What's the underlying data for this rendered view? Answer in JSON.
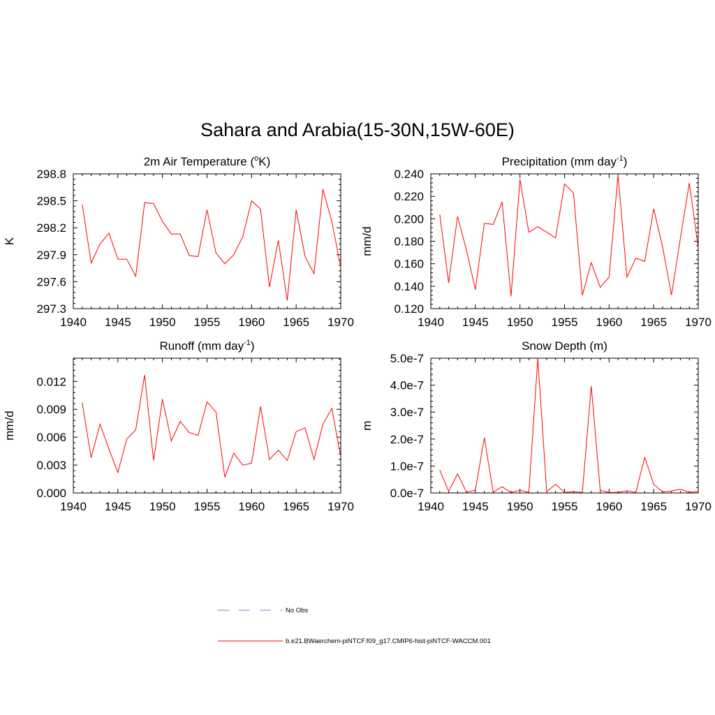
{
  "title": "Sahara and Arabia(15-30N,15W-60E)",
  "colors": {
    "series": "#ff0000",
    "no_obs": "#9999dd",
    "axis": "#000000"
  },
  "legend": {
    "items": [
      {
        "label": "No Obs",
        "style": "dashed"
      },
      {
        "label": "b.e21.BWaerchem-piNTCF.f09_g17.CMIP6-hist-piNTCF-WACCM.001",
        "style": "solid"
      }
    ]
  },
  "chart_data": [
    {
      "type": "line",
      "title_parts": [
        "2m Air Temperature (",
        "o",
        "K)"
      ],
      "title_style": "sup-mid",
      "ylabel": "K",
      "xlim": [
        1940,
        1970
      ],
      "ylim": [
        297.3,
        298.8
      ],
      "xticks": [
        1940,
        1945,
        1950,
        1955,
        1960,
        1965,
        1970
      ],
      "yticks": [
        297.3,
        297.6,
        297.9,
        298.2,
        298.5,
        298.8
      ],
      "ytick_labels": [
        "297.3",
        "297.6",
        "297.9",
        "298.2",
        "298.5",
        "298.8"
      ],
      "x": [
        1941,
        1942,
        1943,
        1944,
        1945,
        1946,
        1947,
        1948,
        1949,
        1950,
        1951,
        1952,
        1953,
        1954,
        1955,
        1956,
        1957,
        1958,
        1959,
        1960,
        1961,
        1962,
        1963,
        1964,
        1965,
        1966,
        1967,
        1968,
        1969,
        1970
      ],
      "series": [
        {
          "values": [
            298.46,
            297.81,
            298.02,
            298.14,
            297.85,
            297.85,
            297.66,
            298.48,
            298.47,
            298.27,
            298.13,
            298.13,
            297.89,
            297.88,
            298.4,
            297.92,
            297.8,
            297.9,
            298.1,
            298.5,
            298.41,
            297.54,
            298.06,
            297.39,
            298.4,
            297.88,
            297.69,
            298.63,
            298.27,
            297.76
          ]
        }
      ]
    },
    {
      "type": "line",
      "title_parts": [
        "Precipitation (mm day",
        "-1",
        ")"
      ],
      "title_style": "sup",
      "ylabel": "mm/d",
      "xlim": [
        1940,
        1970
      ],
      "ylim": [
        0.12,
        0.24
      ],
      "xticks": [
        1940,
        1945,
        1950,
        1955,
        1960,
        1965,
        1970
      ],
      "yticks": [
        0.12,
        0.14,
        0.16,
        0.18,
        0.2,
        0.22,
        0.24
      ],
      "ytick_labels": [
        "0.120",
        "0.140",
        "0.160",
        "0.180",
        "0.200",
        "0.220",
        "0.240"
      ],
      "x": [
        1941,
        1942,
        1943,
        1944,
        1945,
        1946,
        1947,
        1948,
        1949,
        1950,
        1951,
        1952,
        1953,
        1954,
        1955,
        1956,
        1957,
        1958,
        1959,
        1960,
        1961,
        1962,
        1963,
        1964,
        1965,
        1966,
        1967,
        1968,
        1969,
        1970
      ],
      "series": [
        {
          "values": [
            0.204,
            0.143,
            0.202,
            0.172,
            0.137,
            0.196,
            0.195,
            0.215,
            0.131,
            0.235,
            0.188,
            0.193,
            0.188,
            0.183,
            0.231,
            0.223,
            0.132,
            0.161,
            0.139,
            0.148,
            0.239,
            0.148,
            0.165,
            0.162,
            0.209,
            0.175,
            0.132,
            0.183,
            0.232,
            0.174
          ]
        }
      ]
    },
    {
      "type": "line",
      "title_parts": [
        "Runoff (mm day",
        "-1",
        ")"
      ],
      "title_style": "sup",
      "ylabel": "mm/d",
      "xlim": [
        1940,
        1970
      ],
      "ylim": [
        0,
        0.0145
      ],
      "xticks": [
        1940,
        1945,
        1950,
        1955,
        1960,
        1965,
        1970
      ],
      "yticks": [
        0,
        0.003,
        0.006,
        0.009,
        0.012
      ],
      "ytick_labels": [
        "0.000",
        "0.003",
        "0.006",
        "0.009",
        "0.012"
      ],
      "x": [
        1941,
        1942,
        1943,
        1944,
        1945,
        1946,
        1947,
        1948,
        1949,
        1950,
        1951,
        1952,
        1953,
        1954,
        1955,
        1956,
        1957,
        1958,
        1959,
        1960,
        1961,
        1962,
        1963,
        1964,
        1965,
        1966,
        1967,
        1968,
        1969,
        1970
      ],
      "series": [
        {
          "values": [
            0.0097,
            0.0038,
            0.0074,
            0.0047,
            0.0022,
            0.0058,
            0.0068,
            0.0127,
            0.0035,
            0.0101,
            0.0056,
            0.0077,
            0.0065,
            0.0062,
            0.0098,
            0.0087,
            0.0017,
            0.0043,
            0.003,
            0.0032,
            0.0093,
            0.0036,
            0.0046,
            0.0035,
            0.0066,
            0.007,
            0.0036,
            0.0074,
            0.0091,
            0.0039
          ]
        }
      ]
    },
    {
      "type": "line",
      "title_parts": [
        "Snow Depth (m)"
      ],
      "title_style": "plain",
      "ylabel": "m",
      "xlim": [
        1940,
        1970
      ],
      "ylim": [
        0,
        5e-07
      ],
      "xticks": [
        1940,
        1945,
        1950,
        1955,
        1960,
        1965,
        1970
      ],
      "yticks": [
        0,
        1e-07,
        2e-07,
        3e-07,
        4e-07,
        5e-07
      ],
      "ytick_labels": [
        "0.0e-7",
        "1.0e-7",
        "2.0e-7",
        "3.0e-7",
        "4.0e-7",
        "5.0e-7"
      ],
      "x": [
        1941,
        1942,
        1943,
        1944,
        1945,
        1946,
        1947,
        1948,
        1949,
        1950,
        1951,
        1952,
        1953,
        1954,
        1955,
        1956,
        1957,
        1958,
        1959,
        1960,
        1961,
        1962,
        1963,
        1964,
        1965,
        1966,
        1967,
        1968,
        1969,
        1970
      ],
      "series": [
        {
          "values": [
            8.5e-08,
            6e-09,
            7.1e-08,
            3e-09,
            1e-08,
            2.05e-07,
            3e-09,
            2.3e-08,
            2e-09,
            1e-08,
            2e-09,
            5e-07,
            5e-09,
            3.2e-08,
            2e-09,
            5e-09,
            2e-09,
            3.97e-07,
            1e-08,
            2e-09,
            2e-09,
            8e-09,
            2e-09,
            1.32e-07,
            3.2e-08,
            4e-09,
            7e-09,
            1.4e-08,
            2e-09,
            6e-09
          ]
        }
      ]
    }
  ]
}
